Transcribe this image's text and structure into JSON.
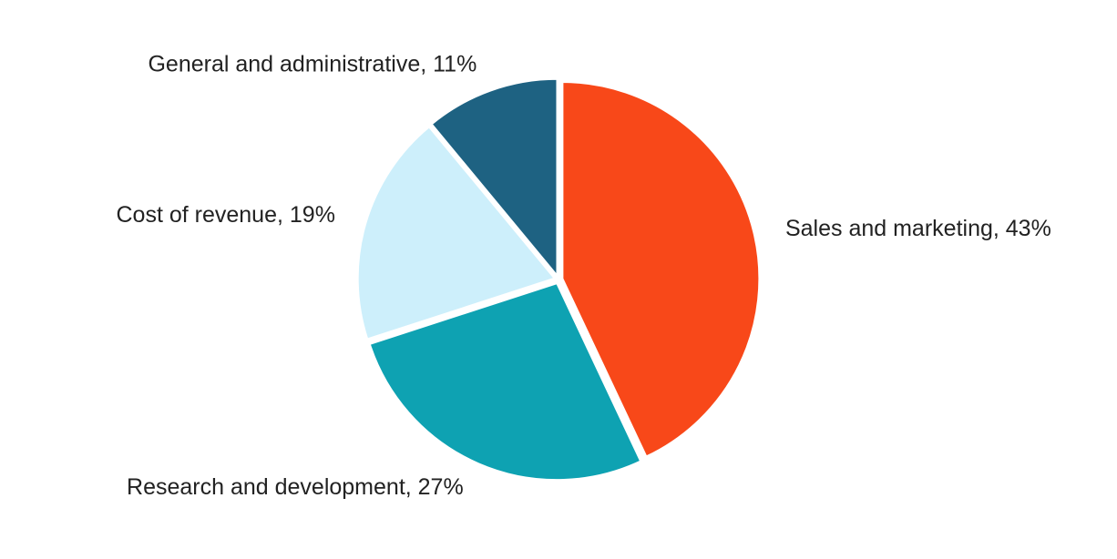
{
  "chart_data": {
    "type": "pie",
    "title": "",
    "start_angle_deg": 0,
    "direction": "clockwise",
    "slices": [
      {
        "name": "Sales and marketing",
        "value": 43,
        "pct_label": "43%",
        "label": "Sales and marketing, 43%",
        "color": "#F84819"
      },
      {
        "name": "Research and development",
        "value": 27,
        "pct_label": "27%",
        "label": "Research and development, 27%",
        "color": "#0EA2B2"
      },
      {
        "name": "Cost of revenue",
        "value": 19,
        "pct_label": "19%",
        "label": "Cost of revenue, 19%",
        "color": "#CDEFFB"
      },
      {
        "name": "General and administrative",
        "value": 11,
        "pct_label": "11%",
        "label": "General and administrative, 11%",
        "color": "#1E6282"
      }
    ]
  }
}
